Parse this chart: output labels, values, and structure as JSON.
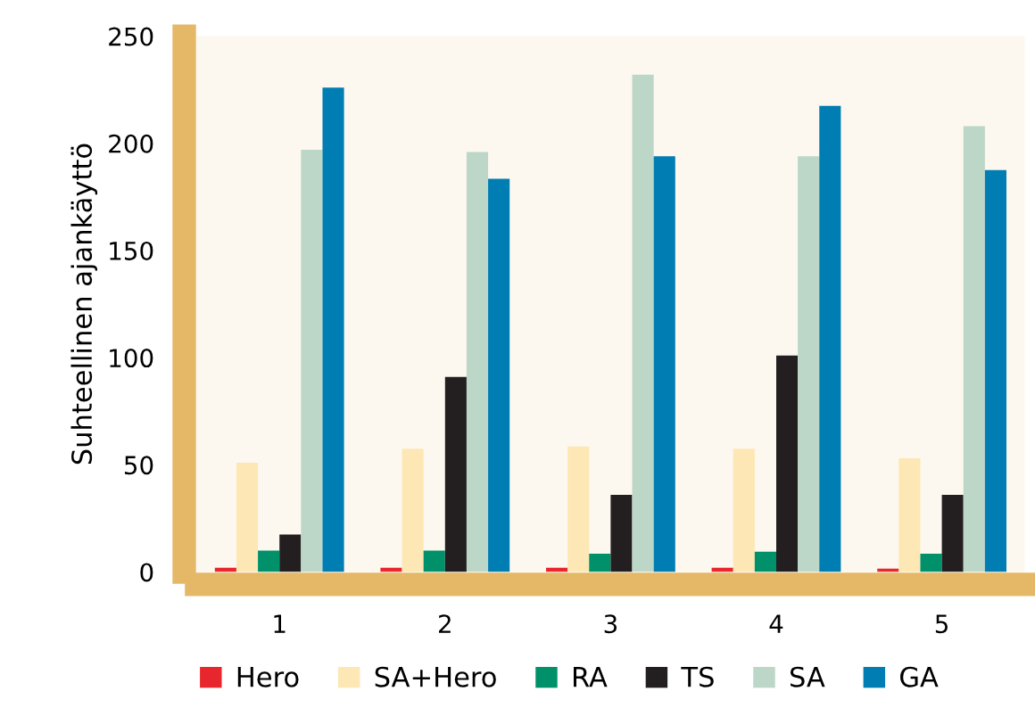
{
  "chart_data": {
    "type": "bar",
    "ylabel": "Suhteellinen ajankäyttö",
    "categories": [
      "1",
      "2",
      "3",
      "4",
      "5"
    ],
    "series": [
      {
        "name": "Hero",
        "color": "#e8262e",
        "values": [
          2,
          2,
          2,
          2,
          1.5
        ]
      },
      {
        "name": "SA+Hero",
        "color": "#fde7b5",
        "values": [
          51,
          57.5,
          58.5,
          57.5,
          53
        ]
      },
      {
        "name": "RA",
        "color": "#00916b",
        "values": [
          10,
          10,
          8.5,
          9.5,
          8.5
        ]
      },
      {
        "name": "TS",
        "color": "#231f20",
        "values": [
          17.5,
          91,
          36,
          101,
          36
        ]
      },
      {
        "name": "SA",
        "color": "#bcd7c8",
        "values": [
          197,
          196,
          232,
          194,
          208
        ]
      },
      {
        "name": "GA",
        "color": "#007db3",
        "values": [
          226,
          183.5,
          194,
          217.5,
          187.5
        ]
      }
    ],
    "ylim": [
      0,
      250
    ],
    "yticks": [
      0,
      50,
      100,
      150,
      200,
      250
    ],
    "grid": false,
    "legend": "bottom"
  }
}
